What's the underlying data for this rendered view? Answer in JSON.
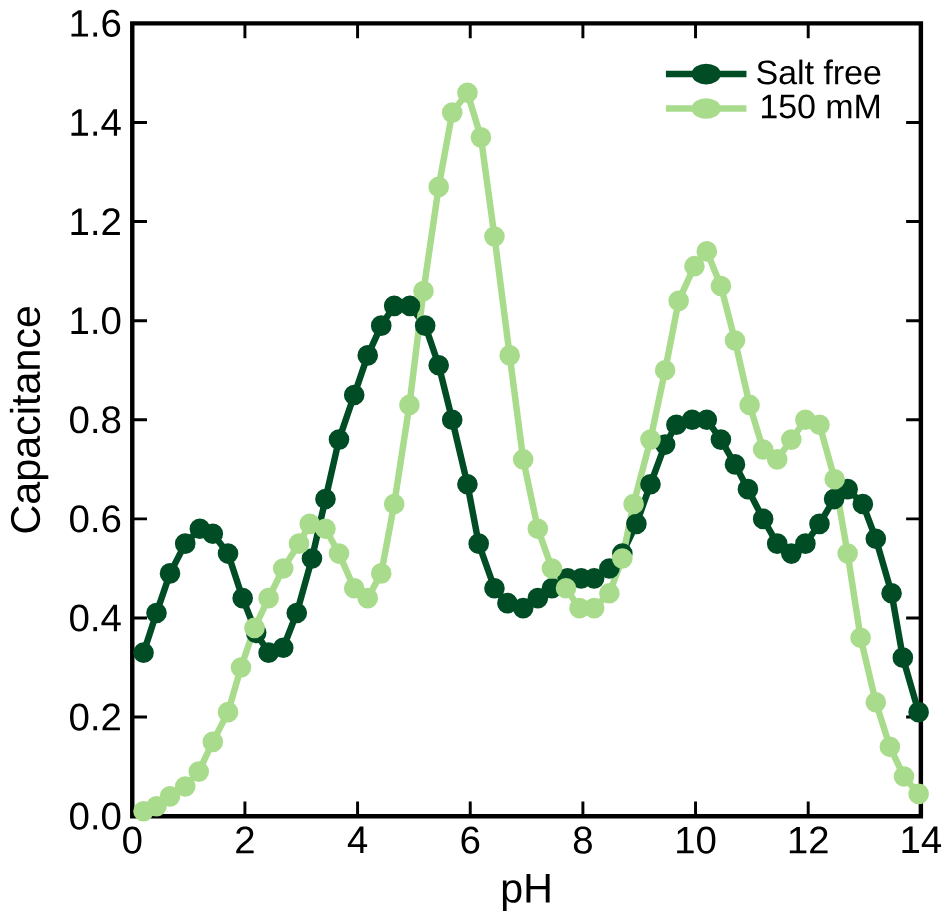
{
  "chart_data": {
    "type": "line",
    "xlabel": "pH",
    "ylabel": "Capacitance",
    "xlim": [
      0,
      14
    ],
    "ylim": [
      0,
      1.6
    ],
    "xticks": [
      0,
      2,
      4,
      6,
      8,
      10,
      12,
      14
    ],
    "yticks": [
      {
        "value": 0,
        "label": "0.0"
      },
      {
        "value": 0.2,
        "label": "0.2"
      },
      {
        "value": 0.4,
        "label": "0.4"
      },
      {
        "value": 0.6,
        "label": "0.6"
      },
      {
        "value": 0.8,
        "label": "0.8"
      },
      {
        "value": 1.0,
        "label": "1.0"
      },
      {
        "value": 1.2,
        "label": "1.2"
      },
      {
        "value": 1.4,
        "label": "1.4"
      },
      {
        "value": 1.6,
        "label": "1.6"
      }
    ],
    "legend": "top right",
    "marker": "circle",
    "line_style": "solid",
    "grid": false,
    "series": [
      {
        "name": "Salt free",
        "color": "#004d25",
        "x": [
          0.2,
          0.43,
          0.67,
          0.94,
          1.2,
          1.43,
          1.7,
          1.96,
          2.2,
          2.42,
          2.68,
          2.92,
          3.19,
          3.43,
          3.67,
          3.94,
          4.18,
          4.42,
          4.65,
          4.93,
          5.2,
          5.44,
          5.68,
          5.95,
          6.15,
          6.43,
          6.66,
          6.94,
          7.2,
          7.45,
          7.73,
          7.97,
          8.2,
          8.47,
          8.7,
          8.95,
          9.2,
          9.46,
          9.66,
          9.94,
          10.2,
          10.45,
          10.7,
          10.93,
          11.2,
          11.45,
          11.7,
          11.95,
          12.2,
          12.46,
          12.7,
          12.97,
          13.2,
          13.48,
          13.68,
          13.96
        ],
        "values": [
          0.33,
          0.41,
          0.49,
          0.55,
          0.58,
          0.57,
          0.53,
          0.44,
          0.37,
          0.33,
          0.34,
          0.41,
          0.52,
          0.64,
          0.76,
          0.85,
          0.93,
          0.99,
          1.03,
          1.03,
          0.99,
          0.91,
          0.8,
          0.67,
          0.55,
          0.46,
          0.43,
          0.42,
          0.44,
          0.46,
          0.48,
          0.48,
          0.48,
          0.5,
          0.53,
          0.59,
          0.67,
          0.75,
          0.79,
          0.8,
          0.8,
          0.76,
          0.71,
          0.66,
          0.6,
          0.55,
          0.53,
          0.55,
          0.59,
          0.64,
          0.66,
          0.63,
          0.56,
          0.45,
          0.32,
          0.21
        ]
      },
      {
        "name": "150 mM",
        "color": "#a8dc8c",
        "x": [
          0.2,
          0.43,
          0.67,
          0.94,
          1.18,
          1.43,
          1.7,
          1.93,
          2.17,
          2.42,
          2.68,
          2.96,
          3.15,
          3.43,
          3.67,
          3.94,
          4.18,
          4.42,
          4.65,
          4.92,
          5.17,
          5.44,
          5.68,
          5.95,
          6.19,
          6.43,
          6.7,
          6.94,
          7.2,
          7.45,
          7.7,
          7.94,
          8.2,
          8.47,
          8.7,
          8.9,
          9.2,
          9.46,
          9.7,
          9.98,
          10.2,
          10.45,
          10.7,
          10.96,
          11.2,
          11.45,
          11.7,
          11.95,
          12.2,
          12.47,
          12.7,
          12.93,
          13.2,
          13.45,
          13.7,
          13.96
        ],
        "values": [
          0.01,
          0.02,
          0.04,
          0.06,
          0.09,
          0.15,
          0.21,
          0.3,
          0.38,
          0.44,
          0.5,
          0.55,
          0.59,
          0.58,
          0.53,
          0.46,
          0.44,
          0.49,
          0.63,
          0.83,
          1.06,
          1.27,
          1.42,
          1.46,
          1.37,
          1.17,
          0.93,
          0.72,
          0.58,
          0.5,
          0.46,
          0.42,
          0.42,
          0.45,
          0.52,
          0.63,
          0.76,
          0.9,
          1.04,
          1.11,
          1.14,
          1.07,
          0.96,
          0.83,
          0.74,
          0.72,
          0.76,
          0.8,
          0.79,
          0.68,
          0.53,
          0.36,
          0.23,
          0.14,
          0.08,
          0.045
        ]
      }
    ]
  }
}
